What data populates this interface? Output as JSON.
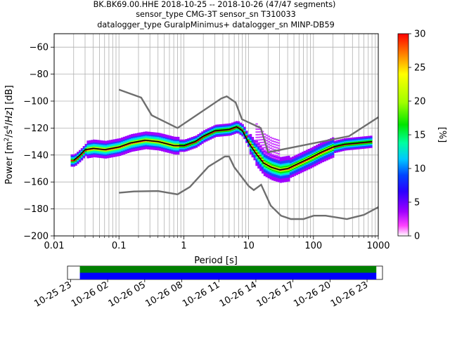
{
  "header": {
    "line1": "BK.BK69.00.HHE   2018-10-25 -- 2018-10-26  (47/47 segments)",
    "line2": "sensor_type CMG-3T sensor_sn T310033",
    "line3": "datalogger_type GuralpMinimus+ datalogger_sn MINP-DB59"
  },
  "chart_data": [
    {
      "type": "heatmap",
      "xlabel": "Period [s]",
      "ylabel": "Power [m²/s⁴/Hz] [dB]",
      "xscale": "log",
      "xlim": [
        0.01,
        1000
      ],
      "ylim": [
        -200,
        -50
      ],
      "xticks": [
        0.01,
        0.1,
        1,
        10,
        100,
        1000
      ],
      "xtick_labels": [
        "0.01",
        "0.1",
        "1",
        "10",
        "100",
        "1000"
      ],
      "yticks": [
        -200,
        -180,
        -160,
        -140,
        -120,
        -100,
        -80,
        -60
      ],
      "ytick_labels": [
        "−200",
        "−180",
        "−160",
        "−140",
        "−120",
        "−100",
        "−80",
        "−60"
      ],
      "grid": true,
      "colorbar": {
        "label": "[%]",
        "range": [
          0,
          30
        ],
        "ticks": [
          0,
          5,
          10,
          15,
          20,
          25,
          30
        ],
        "tick_labels": [
          "0",
          "5",
          "10",
          "15",
          "20",
          "25",
          "30"
        ]
      },
      "series": [
        {
          "role": "high noise model",
          "color": "#6e6e6e",
          "points": [
            [
              0.1,
              -91.5
            ],
            [
              0.22,
              -97.4
            ],
            [
              0.32,
              -110.5
            ],
            [
              0.8,
              -120
            ],
            [
              3.8,
              -98
            ],
            [
              4.6,
              -96.5
            ],
            [
              6.3,
              -101
            ],
            [
              7.9,
              -113.5
            ],
            [
              15.4,
              -120
            ],
            [
              20,
              -138
            ],
            [
              354.8,
              -126
            ],
            [
              1000,
              -112
            ]
          ]
        },
        {
          "role": "low noise model",
          "color": "#6e6e6e",
          "points": [
            [
              0.1,
              -168
            ],
            [
              0.17,
              -167
            ],
            [
              0.4,
              -166.7
            ],
            [
              0.8,
              -169.2
            ],
            [
              1.24,
              -163.7
            ],
            [
              2.4,
              -148.6
            ],
            [
              4.3,
              -141.1
            ],
            [
              5,
              -141.1
            ],
            [
              6,
              -149
            ],
            [
              10,
              -163
            ],
            [
              12,
              -166
            ],
            [
              15.6,
              -162
            ],
            [
              21.9,
              -177.5
            ],
            [
              31.6,
              -185
            ],
            [
              45,
              -187.5
            ],
            [
              70,
              -187.5
            ],
            [
              101,
              -185
            ],
            [
              154,
              -185
            ],
            [
              328,
              -187.5
            ],
            [
              600,
              -184.4
            ],
            [
              1000,
              -178.7
            ]
          ]
        },
        {
          "role": "mode",
          "color": "#000000",
          "points": [
            [
              0.02,
              -144
            ],
            [
              0.025,
              -140
            ],
            [
              0.03,
              -136
            ],
            [
              0.04,
              -135
            ],
            [
              0.06,
              -136
            ],
            [
              0.1,
              -134
            ],
            [
              0.15,
              -131
            ],
            [
              0.25,
              -129
            ],
            [
              0.4,
              -130
            ],
            [
              0.7,
              -133
            ],
            [
              1,
              -133
            ],
            [
              1.5,
              -130
            ],
            [
              2,
              -126
            ],
            [
              3,
              -122
            ],
            [
              5,
              -121
            ],
            [
              6.5,
              -119
            ],
            [
              8,
              -122
            ],
            [
              10,
              -131
            ],
            [
              13,
              -139
            ],
            [
              17,
              -146
            ],
            [
              22,
              -149
            ],
            [
              30,
              -151
            ],
            [
              40,
              -150
            ],
            [
              60,
              -146
            ],
            [
              90,
              -142
            ],
            [
              130,
              -138
            ],
            [
              200,
              -134
            ],
            [
              300,
              -132
            ],
            [
              500,
              -131
            ],
            [
              800,
              -130
            ]
          ]
        }
      ]
    },
    {
      "type": "timeline",
      "x_tick_labels": [
        "10-25 23",
        "10-26 02",
        "10-26 05",
        "10-26 08",
        "10-26 11",
        "10-26 14",
        "10-26 17",
        "10-26 20",
        "10-26 23"
      ],
      "coverage": [
        {
          "start": "2018-10-25 23:45",
          "end": "2018-10-26 23:45",
          "color": "#008000"
        },
        {
          "start": "2018-10-25 23:45",
          "end": "2018-10-26 23:45",
          "color": "#0000ff"
        }
      ]
    }
  ]
}
